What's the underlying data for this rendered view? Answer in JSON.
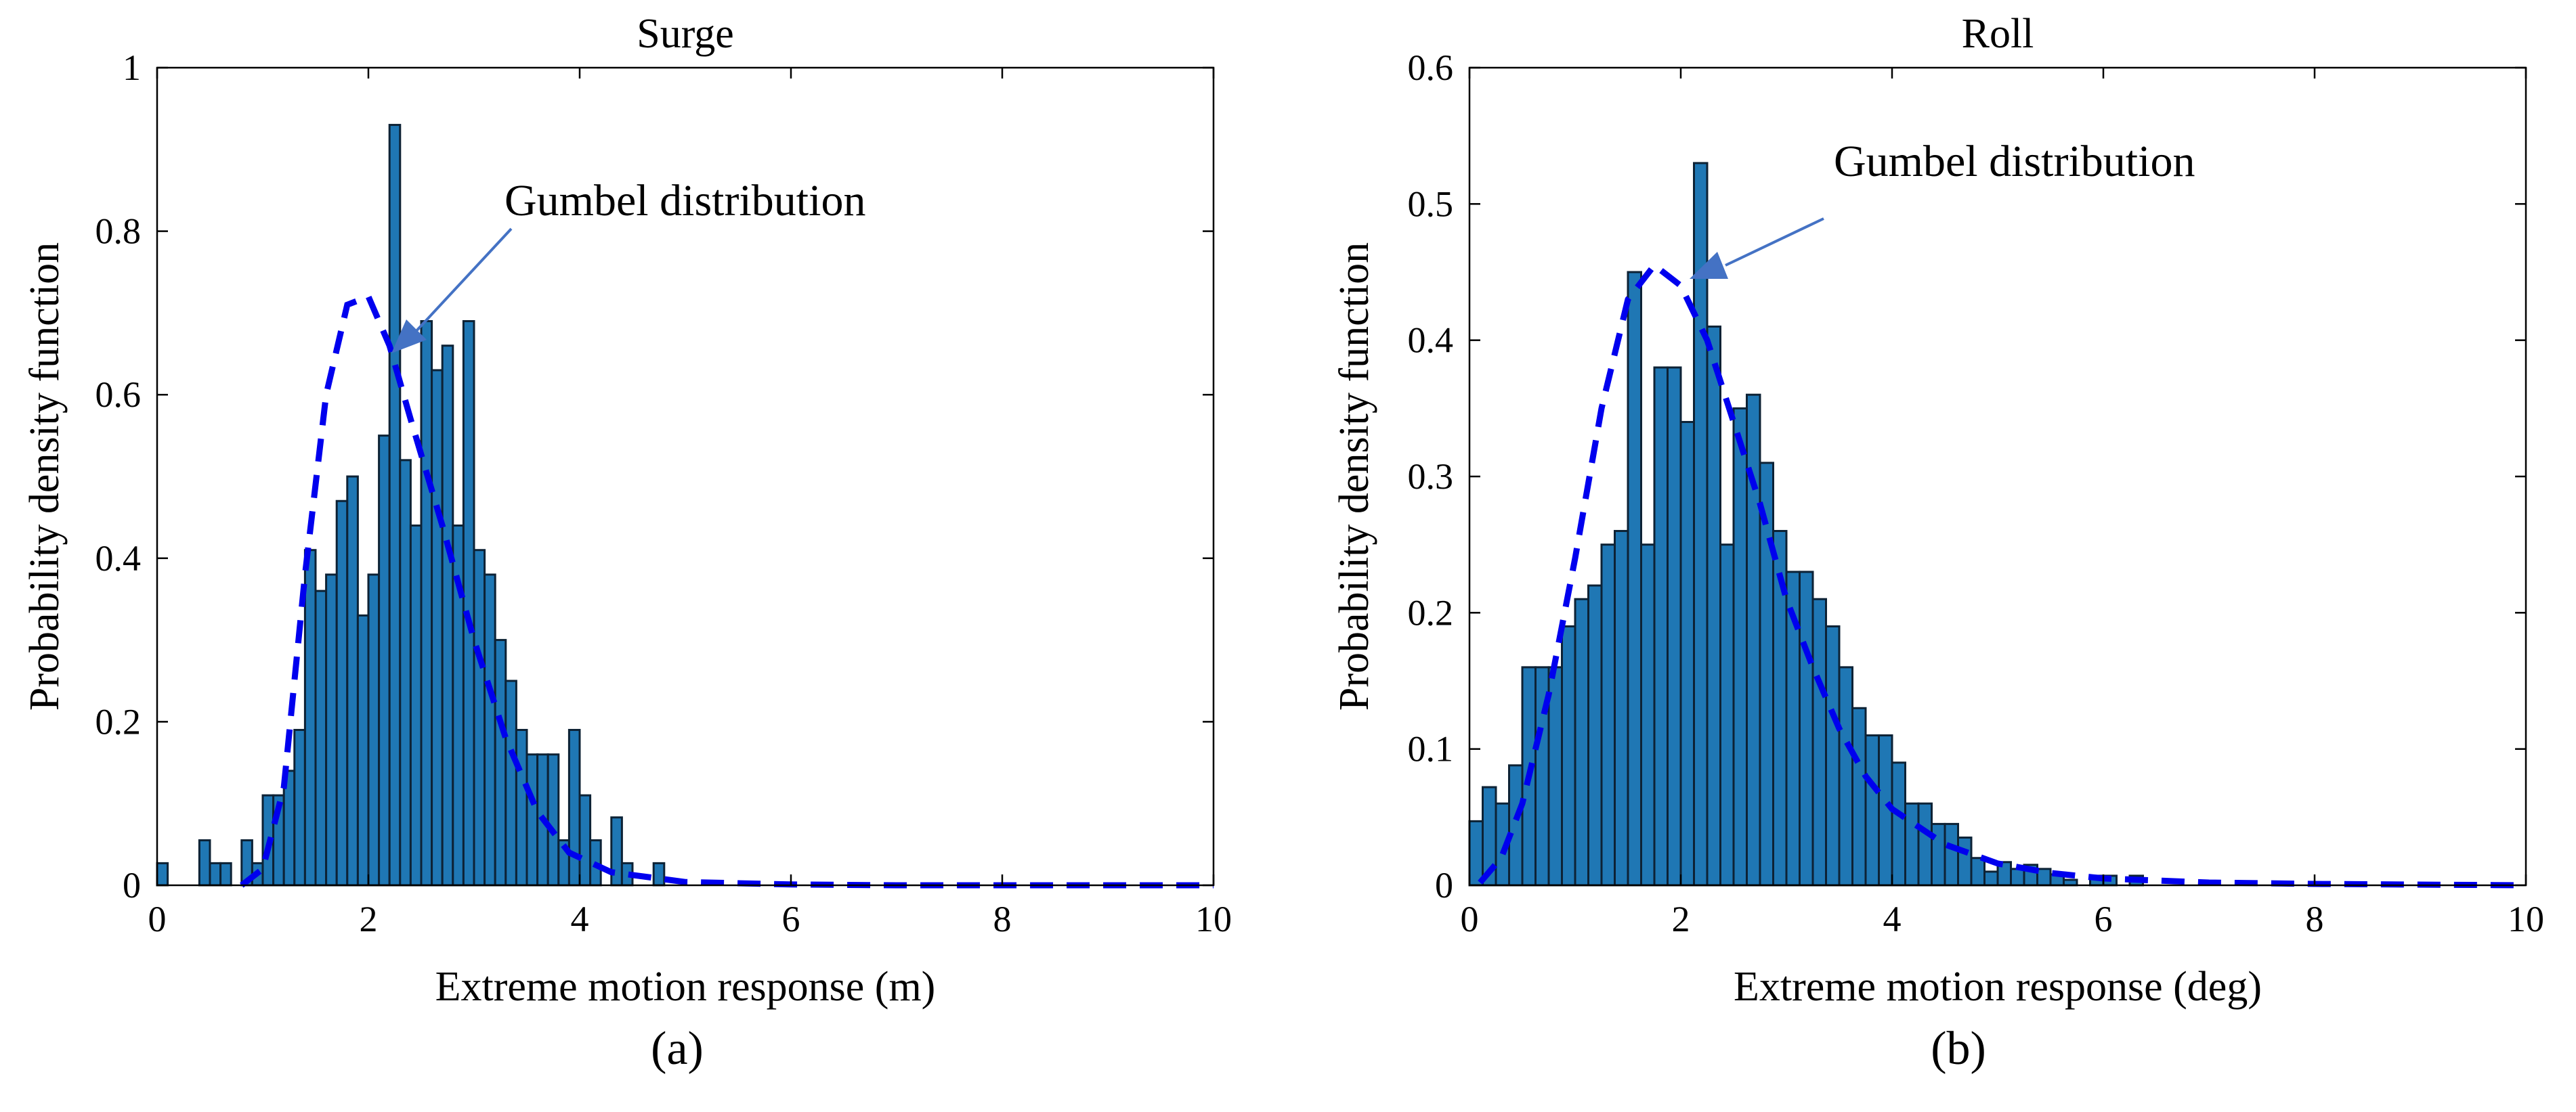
{
  "chart_data": [
    {
      "id": "a",
      "type": "bar",
      "title": "Surge",
      "xlabel": "Extreme motion response (m)",
      "ylabel": "Probability density function",
      "caption": "(a)",
      "xlim": [
        0,
        10
      ],
      "ylim": [
        0,
        1
      ],
      "xticks": [
        "0",
        "2",
        "4",
        "6",
        "8",
        "10"
      ],
      "yticks": [
        "0",
        "0.2",
        "0.4",
        "0.6",
        "0.8",
        "1"
      ],
      "bin_width": 0.1,
      "bins": [
        {
          "x": 0.05,
          "v": 0.027
        },
        {
          "x": 0.45,
          "v": 0.055
        },
        {
          "x": 0.55,
          "v": 0.027
        },
        {
          "x": 0.65,
          "v": 0.027
        },
        {
          "x": 0.85,
          "v": 0.055
        },
        {
          "x": 0.95,
          "v": 0.027
        },
        {
          "x": 1.05,
          "v": 0.11
        },
        {
          "x": 1.15,
          "v": 0.11
        },
        {
          "x": 1.25,
          "v": 0.14
        },
        {
          "x": 1.35,
          "v": 0.19
        },
        {
          "x": 1.45,
          "v": 0.41
        },
        {
          "x": 1.55,
          "v": 0.36
        },
        {
          "x": 1.65,
          "v": 0.38
        },
        {
          "x": 1.75,
          "v": 0.47
        },
        {
          "x": 1.85,
          "v": 0.5
        },
        {
          "x": 1.95,
          "v": 0.33
        },
        {
          "x": 2.05,
          "v": 0.38
        },
        {
          "x": 2.15,
          "v": 0.55
        },
        {
          "x": 2.25,
          "v": 0.93
        },
        {
          "x": 2.35,
          "v": 0.52
        },
        {
          "x": 2.45,
          "v": 0.44
        },
        {
          "x": 2.55,
          "v": 0.69
        },
        {
          "x": 2.65,
          "v": 0.63
        },
        {
          "x": 2.75,
          "v": 0.66
        },
        {
          "x": 2.85,
          "v": 0.44
        },
        {
          "x": 2.95,
          "v": 0.69
        },
        {
          "x": 3.05,
          "v": 0.41
        },
        {
          "x": 3.15,
          "v": 0.38
        },
        {
          "x": 3.25,
          "v": 0.3
        },
        {
          "x": 3.35,
          "v": 0.25
        },
        {
          "x": 3.45,
          "v": 0.19
        },
        {
          "x": 3.55,
          "v": 0.16
        },
        {
          "x": 3.65,
          "v": 0.16
        },
        {
          "x": 3.75,
          "v": 0.16
        },
        {
          "x": 3.85,
          "v": 0.055
        },
        {
          "x": 3.95,
          "v": 0.19
        },
        {
          "x": 4.05,
          "v": 0.11
        },
        {
          "x": 4.15,
          "v": 0.055
        },
        {
          "x": 4.35,
          "v": 0.083
        },
        {
          "x": 4.45,
          "v": 0.027
        },
        {
          "x": 4.75,
          "v": 0.027
        }
      ],
      "fit": {
        "name": "Gumbel distribution",
        "points": [
          [
            0.8,
            0
          ],
          [
            1.0,
            0.02
          ],
          [
            1.2,
            0.12
          ],
          [
            1.4,
            0.38
          ],
          [
            1.6,
            0.6
          ],
          [
            1.8,
            0.71
          ],
          [
            2.0,
            0.72
          ],
          [
            2.2,
            0.66
          ],
          [
            2.4,
            0.57
          ],
          [
            2.7,
            0.44
          ],
          [
            3.0,
            0.3
          ],
          [
            3.3,
            0.18
          ],
          [
            3.6,
            0.09
          ],
          [
            3.9,
            0.04
          ],
          [
            4.3,
            0.016
          ],
          [
            5.0,
            0.004
          ],
          [
            6.0,
            0.001
          ],
          [
            7.0,
            0
          ],
          [
            10.0,
            0
          ]
        ]
      }
    },
    {
      "id": "b",
      "type": "bar",
      "title": "Roll",
      "xlabel": "Extreme motion response (deg)",
      "ylabel": "Probability density function",
      "caption": "(b)",
      "xlim": [
        0,
        10
      ],
      "ylim": [
        0,
        0.6
      ],
      "xticks": [
        "0",
        "2",
        "4",
        "6",
        "8",
        "10"
      ],
      "yticks": [
        "0",
        "0.1",
        "0.2",
        "0.3",
        "0.4",
        "0.5",
        "0.6"
      ],
      "bin_width": 0.125,
      "bins": [
        {
          "x": 0.0625,
          "v": 0.047
        },
        {
          "x": 0.1875,
          "v": 0.072
        },
        {
          "x": 0.3125,
          "v": 0.06
        },
        {
          "x": 0.4375,
          "v": 0.088
        },
        {
          "x": 0.5625,
          "v": 0.16
        },
        {
          "x": 0.6875,
          "v": 0.16
        },
        {
          "x": 0.8125,
          "v": 0.16
        },
        {
          "x": 0.9375,
          "v": 0.19
        },
        {
          "x": 1.0625,
          "v": 0.21
        },
        {
          "x": 1.1875,
          "v": 0.22
        },
        {
          "x": 1.3125,
          "v": 0.25
        },
        {
          "x": 1.4375,
          "v": 0.26
        },
        {
          "x": 1.5625,
          "v": 0.45
        },
        {
          "x": 1.6875,
          "v": 0.25
        },
        {
          "x": 1.8125,
          "v": 0.38
        },
        {
          "x": 1.9375,
          "v": 0.38
        },
        {
          "x": 2.0625,
          "v": 0.34
        },
        {
          "x": 2.1875,
          "v": 0.53
        },
        {
          "x": 2.3125,
          "v": 0.41
        },
        {
          "x": 2.4375,
          "v": 0.25
        },
        {
          "x": 2.5625,
          "v": 0.35
        },
        {
          "x": 2.6875,
          "v": 0.36
        },
        {
          "x": 2.8125,
          "v": 0.31
        },
        {
          "x": 2.9375,
          "v": 0.26
        },
        {
          "x": 3.0625,
          "v": 0.23
        },
        {
          "x": 3.1875,
          "v": 0.23
        },
        {
          "x": 3.3125,
          "v": 0.21
        },
        {
          "x": 3.4375,
          "v": 0.19
        },
        {
          "x": 3.5625,
          "v": 0.16
        },
        {
          "x": 3.6875,
          "v": 0.13
        },
        {
          "x": 3.8125,
          "v": 0.11
        },
        {
          "x": 3.9375,
          "v": 0.11
        },
        {
          "x": 4.0625,
          "v": 0.09
        },
        {
          "x": 4.1875,
          "v": 0.06
        },
        {
          "x": 4.3125,
          "v": 0.06
        },
        {
          "x": 4.4375,
          "v": 0.045
        },
        {
          "x": 4.5625,
          "v": 0.045
        },
        {
          "x": 4.6875,
          "v": 0.035
        },
        {
          "x": 4.8125,
          "v": 0.02
        },
        {
          "x": 4.9375,
          "v": 0.01
        },
        {
          "x": 5.0625,
          "v": 0.017
        },
        {
          "x": 5.1875,
          "v": 0.012
        },
        {
          "x": 5.3125,
          "v": 0.015
        },
        {
          "x": 5.4375,
          "v": 0.012
        },
        {
          "x": 5.5625,
          "v": 0.008
        },
        {
          "x": 5.6875,
          "v": 0.004
        },
        {
          "x": 5.9375,
          "v": 0.007
        },
        {
          "x": 6.0625,
          "v": 0.007
        },
        {
          "x": 6.3125,
          "v": 0.007
        }
      ],
      "fit": {
        "name": "Gumbel distribution",
        "points": [
          [
            0.1,
            0.002
          ],
          [
            0.3,
            0.02
          ],
          [
            0.5,
            0.06
          ],
          [
            0.75,
            0.14
          ],
          [
            1.0,
            0.24
          ],
          [
            1.25,
            0.35
          ],
          [
            1.5,
            0.43
          ],
          [
            1.75,
            0.455
          ],
          [
            2.0,
            0.44
          ],
          [
            2.25,
            0.4
          ],
          [
            2.5,
            0.34
          ],
          [
            2.75,
            0.28
          ],
          [
            3.0,
            0.21
          ],
          [
            3.25,
            0.16
          ],
          [
            3.5,
            0.115
          ],
          [
            3.75,
            0.08
          ],
          [
            4.0,
            0.056
          ],
          [
            4.5,
            0.03
          ],
          [
            5.0,
            0.016
          ],
          [
            5.5,
            0.009
          ],
          [
            6.0,
            0.005
          ],
          [
            7.0,
            0.002
          ],
          [
            8.0,
            0.001
          ],
          [
            10.0,
            0
          ]
        ]
      }
    }
  ]
}
